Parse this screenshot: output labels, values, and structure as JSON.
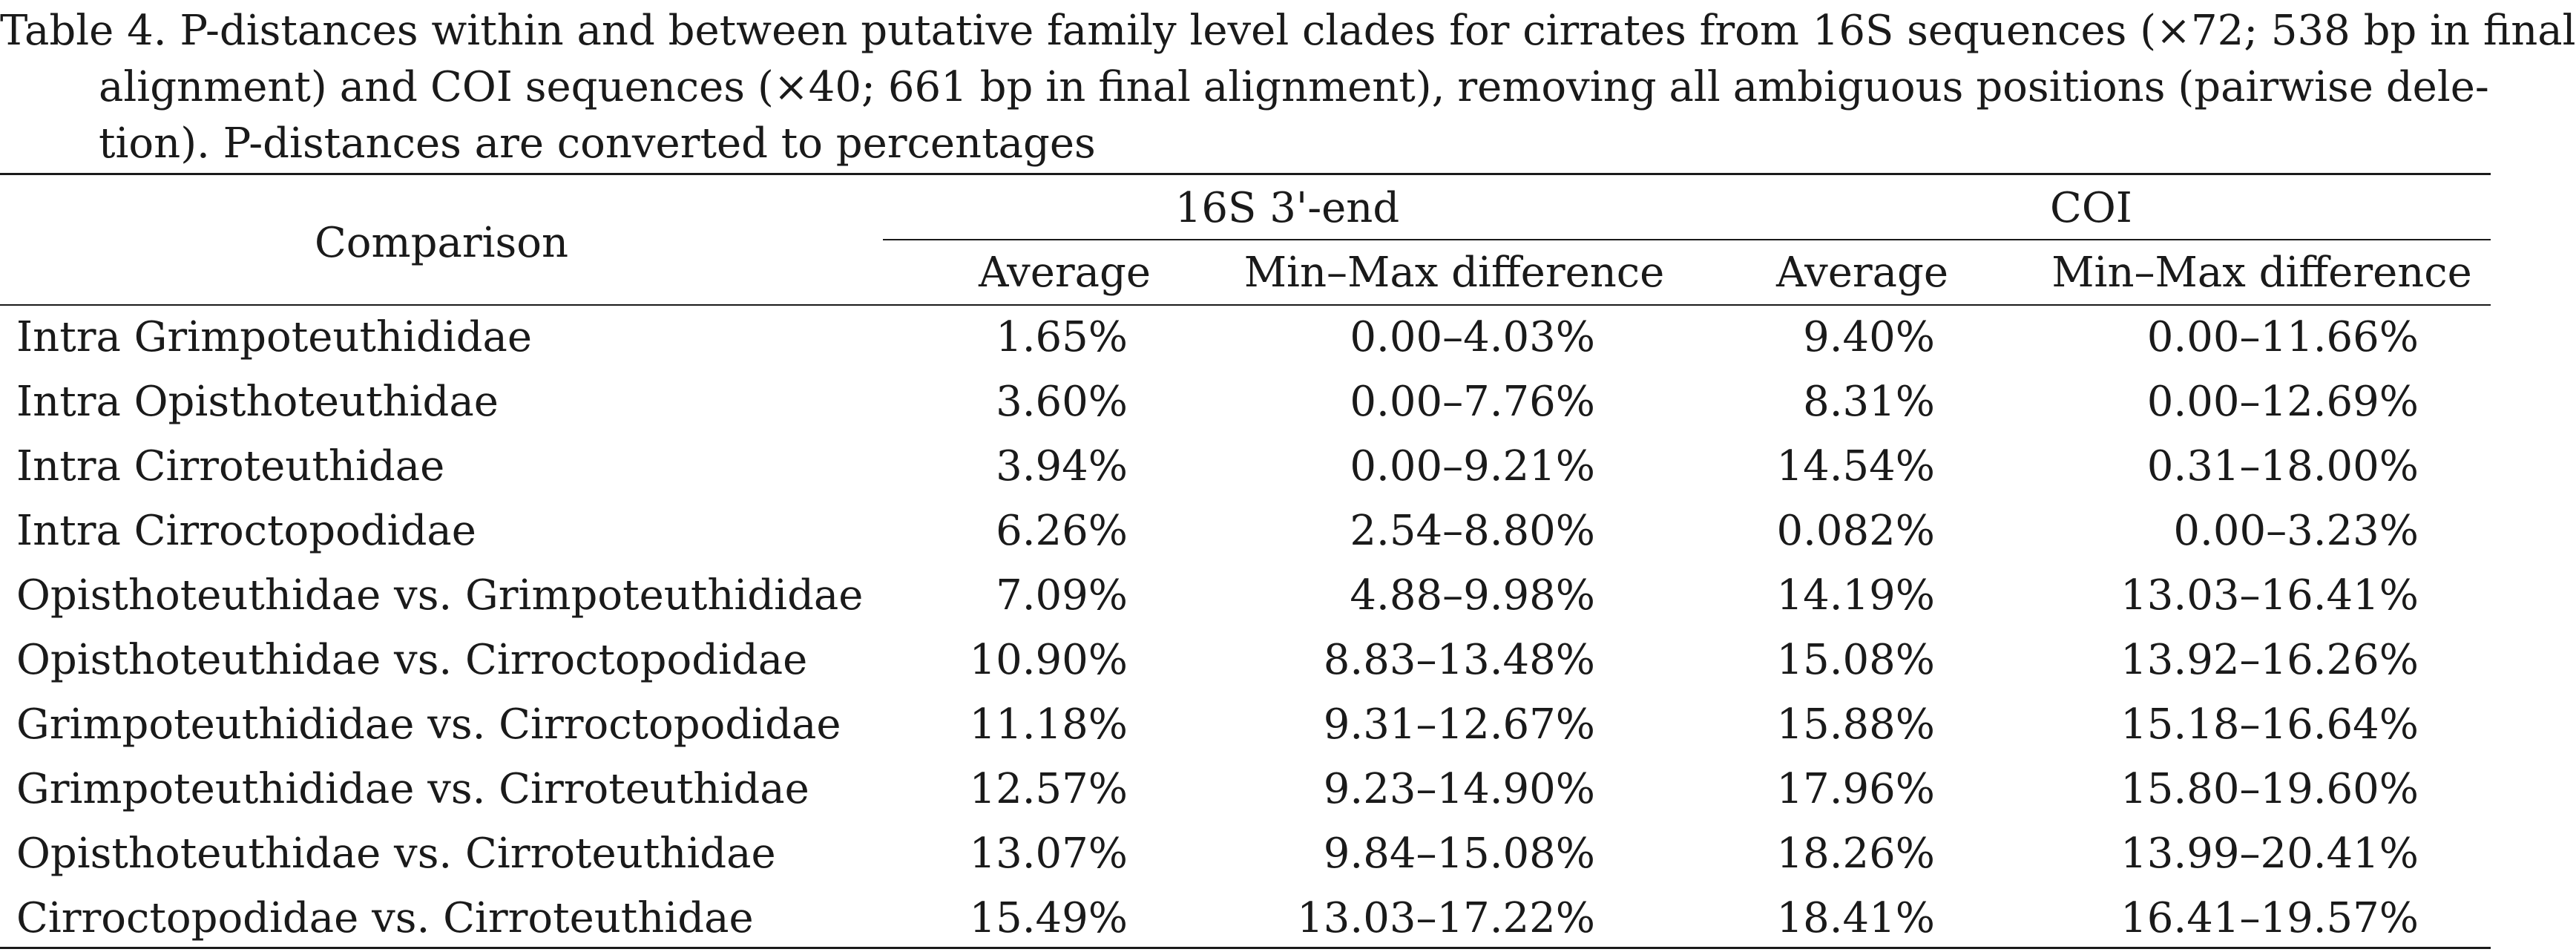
{
  "caption": {
    "line1": "Table 4. P-distances within and between putative family level clades for cirrates from 16S sequences (×72; 538 bp in final",
    "line2_parts": [
      "alignment)",
      "and",
      "COI",
      "sequences",
      "(×40;",
      "661",
      "bp",
      "in",
      "final",
      "alignment),",
      "removing",
      "all",
      "ambiguous",
      "positions",
      "(pairwise",
      "dele-"
    ],
    "line3": "tion). P-distances are converted to percentages"
  },
  "table": {
    "header": {
      "comparison": "Comparison",
      "group_16s": "16S 3'-end",
      "group_coi": "COI",
      "avg_16s": "Average",
      "minmax_16s": "Min–Max difference",
      "avg_coi": "Average",
      "minmax_coi": "Min–Max difference"
    },
    "rows": [
      {
        "comparison": "Intra Grimpoteuthididae",
        "avg_16s": "1.65%",
        "minmax_16s": "0.00–4.03%",
        "avg_coi": "9.40%",
        "minmax_coi": "0.00–11.66%"
      },
      {
        "comparison": "Intra Opisthoteuthidae",
        "avg_16s": "3.60%",
        "minmax_16s": "0.00–7.76%",
        "avg_coi": "8.31%",
        "minmax_coi": "0.00–12.69%"
      },
      {
        "comparison": "Intra Cirroteuthidae",
        "avg_16s": "3.94%",
        "minmax_16s": "0.00–9.21%",
        "avg_coi": "14.54%",
        "minmax_coi": "0.31–18.00%"
      },
      {
        "comparison": "Intra Cirroctopodidae",
        "avg_16s": "6.26%",
        "minmax_16s": "2.54–8.80%",
        "avg_coi": "0.082%",
        "minmax_coi": "0.00–3.23%"
      },
      {
        "comparison": "Opisthoteuthidae vs. Grimpoteuthididae",
        "avg_16s": "7.09%",
        "minmax_16s": "4.88–9.98%",
        "avg_coi": "14.19%",
        "minmax_coi": "13.03–16.41%"
      },
      {
        "comparison": "Opisthoteuthidae vs. Cirroctopodidae",
        "avg_16s": "10.90%",
        "minmax_16s": "8.83–13.48%",
        "avg_coi": "15.08%",
        "minmax_coi": "13.92–16.26%"
      },
      {
        "comparison": "Grimpoteuthididae vs. Cirroctopodidae",
        "avg_16s": "11.18%",
        "minmax_16s": "9.31–12.67%",
        "avg_coi": "15.88%",
        "minmax_coi": "15.18–16.64%"
      },
      {
        "comparison": "Grimpoteuthididae vs. Cirroteuthidae",
        "avg_16s": "12.57%",
        "minmax_16s": "9.23–14.90%",
        "avg_coi": "17.96%",
        "minmax_coi": "15.80–19.60%"
      },
      {
        "comparison": "Opisthoteuthidae vs. Cirroteuthidae",
        "avg_16s": "13.07%",
        "minmax_16s": "9.84–15.08%",
        "avg_coi": "18.26%",
        "minmax_coi": "13.99–20.41%"
      },
      {
        "comparison": "Cirroctopodidae vs. Cirroteuthidae",
        "avg_16s": "15.49%",
        "minmax_16s": "13.03–17.22%",
        "avg_coi": "18.41%",
        "minmax_coi": "16.41–19.57%"
      }
    ]
  }
}
